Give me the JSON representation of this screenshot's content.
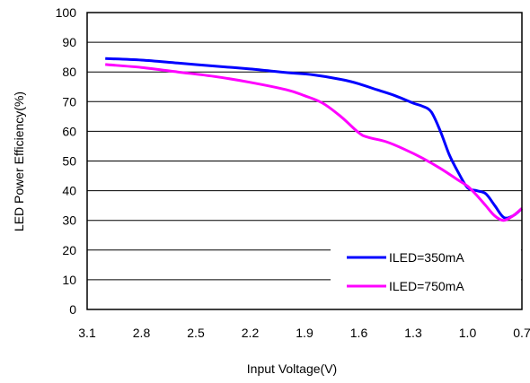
{
  "chart_data": {
    "type": "line",
    "title": "",
    "xlabel": "Input Voltage(V)",
    "ylabel": "LED Power Efficiency(%)",
    "x_reversed": true,
    "xlim": [
      3.1,
      0.7
    ],
    "ylim": [
      0,
      100
    ],
    "xticks": [
      "3.1",
      "2.8",
      "2.5",
      "2.2",
      "1.9",
      "1.6",
      "1.3",
      "1.0",
      "0.7"
    ],
    "yticks": [
      "0",
      "10",
      "20",
      "30",
      "40",
      "50",
      "60",
      "70",
      "80",
      "90",
      "100"
    ],
    "grid": "horizontal",
    "legend_position": "bottom-right",
    "series": [
      {
        "name": "ILED=350mA",
        "color": "#0000ff",
        "points": [
          [
            3.0,
            84.5
          ],
          [
            2.8,
            84.0
          ],
          [
            2.6,
            83.0
          ],
          [
            2.4,
            82.0
          ],
          [
            2.2,
            81.0
          ],
          [
            2.0,
            79.8
          ],
          [
            1.85,
            79.0
          ],
          [
            1.7,
            77.5
          ],
          [
            1.6,
            76.0
          ],
          [
            1.5,
            74.0
          ],
          [
            1.4,
            72.0
          ],
          [
            1.3,
            69.5
          ],
          [
            1.25,
            68.5
          ],
          [
            1.2,
            66.5
          ],
          [
            1.15,
            60.0
          ],
          [
            1.1,
            52.0
          ],
          [
            1.05,
            46.0
          ],
          [
            1.0,
            41.0
          ],
          [
            0.95,
            40.0
          ],
          [
            0.9,
            39.0
          ],
          [
            0.85,
            35.0
          ],
          [
            0.8,
            31.0
          ],
          [
            0.75,
            31.5
          ],
          [
            0.7,
            34.0
          ]
        ]
      },
      {
        "name": "ILED=750mA",
        "color": "#ff00ff",
        "points": [
          [
            3.0,
            82.5
          ],
          [
            2.8,
            81.5
          ],
          [
            2.6,
            80.0
          ],
          [
            2.4,
            78.5
          ],
          [
            2.2,
            76.5
          ],
          [
            2.0,
            74.0
          ],
          [
            1.9,
            72.0
          ],
          [
            1.8,
            69.5
          ],
          [
            1.7,
            65.0
          ],
          [
            1.6,
            59.5
          ],
          [
            1.55,
            58.0
          ],
          [
            1.45,
            56.5
          ],
          [
            1.35,
            54.0
          ],
          [
            1.25,
            51.0
          ],
          [
            1.15,
            47.5
          ],
          [
            1.05,
            43.5
          ],
          [
            1.0,
            41.5
          ],
          [
            0.95,
            38.5
          ],
          [
            0.9,
            35.0
          ],
          [
            0.85,
            31.5
          ],
          [
            0.8,
            30.0
          ],
          [
            0.75,
            31.5
          ],
          [
            0.7,
            34.0
          ]
        ]
      }
    ]
  }
}
